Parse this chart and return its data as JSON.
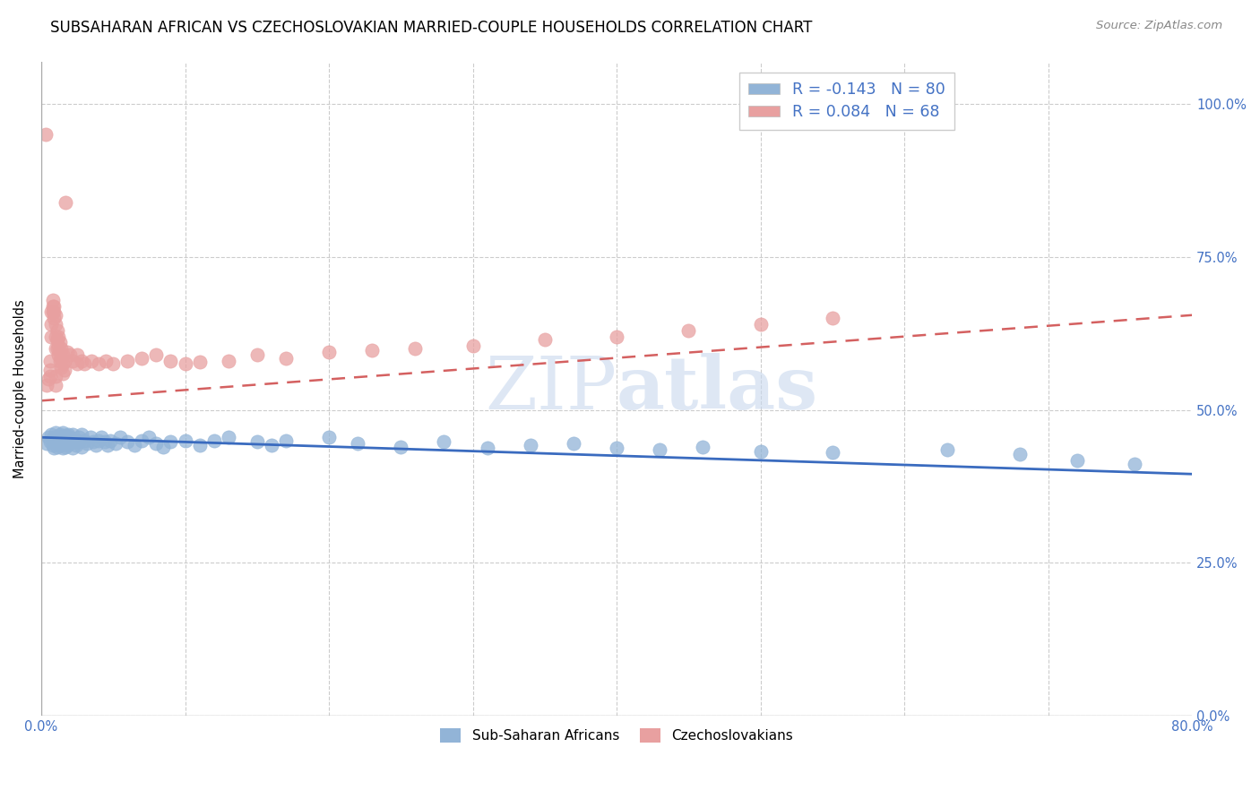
{
  "title": "SUBSAHARAN AFRICAN VS CZECHOSLOVAKIAN MARRIED-COUPLE HOUSEHOLDS CORRELATION CHART",
  "source": "Source: ZipAtlas.com",
  "ylabel": "Married-couple Households",
  "ytick_labels": [
    "0.0%",
    "25.0%",
    "50.0%",
    "75.0%",
    "100.0%"
  ],
  "ytick_vals": [
    0.0,
    0.25,
    0.5,
    0.75,
    1.0
  ],
  "xlim": [
    0.0,
    0.8
  ],
  "ylim": [
    0.0,
    1.07
  ],
  "xtick_positions": [
    0.0,
    0.8
  ],
  "xtick_labels": [
    "0.0%",
    "80.0%"
  ],
  "legend_blue_r": "-0.143",
  "legend_blue_n": "80",
  "legend_pink_r": "0.084",
  "legend_pink_n": "68",
  "legend_sub_label": "Sub-Saharan Africans",
  "legend_czech_label": "Czechoslovakians",
  "blue_color": "#92b4d7",
  "pink_color": "#e8a0a0",
  "trend_blue_color": "#3a6bbf",
  "trend_pink_color": "#d46060",
  "watermark_color": "#c8d8ee",
  "title_fontsize": 12,
  "source_fontsize": 9.5,
  "blue_trend_start_y": 0.455,
  "blue_trend_end_y": 0.395,
  "pink_trend_start_y": 0.515,
  "pink_trend_end_y": 0.655,
  "blue_scatter": [
    [
      0.004,
      0.445
    ],
    [
      0.005,
      0.455
    ],
    [
      0.006,
      0.448
    ],
    [
      0.007,
      0.46
    ],
    [
      0.008,
      0.442
    ],
    [
      0.008,
      0.452
    ],
    [
      0.009,
      0.455
    ],
    [
      0.009,
      0.438
    ],
    [
      0.01,
      0.45
    ],
    [
      0.01,
      0.462
    ],
    [
      0.011,
      0.448
    ],
    [
      0.011,
      0.44
    ],
    [
      0.012,
      0.455
    ],
    [
      0.012,
      0.445
    ],
    [
      0.013,
      0.46
    ],
    [
      0.013,
      0.442
    ],
    [
      0.014,
      0.455
    ],
    [
      0.014,
      0.448
    ],
    [
      0.015,
      0.462
    ],
    [
      0.015,
      0.438
    ],
    [
      0.016,
      0.45
    ],
    [
      0.016,
      0.445
    ],
    [
      0.017,
      0.458
    ],
    [
      0.017,
      0.44
    ],
    [
      0.018,
      0.455
    ],
    [
      0.018,
      0.442
    ],
    [
      0.019,
      0.448
    ],
    [
      0.019,
      0.46
    ],
    [
      0.02,
      0.455
    ],
    [
      0.02,
      0.445
    ],
    [
      0.022,
      0.46
    ],
    [
      0.022,
      0.438
    ],
    [
      0.024,
      0.45
    ],
    [
      0.024,
      0.442
    ],
    [
      0.026,
      0.455
    ],
    [
      0.026,
      0.448
    ],
    [
      0.028,
      0.46
    ],
    [
      0.028,
      0.44
    ],
    [
      0.03,
      0.45
    ],
    [
      0.032,
      0.445
    ],
    [
      0.034,
      0.455
    ],
    [
      0.036,
      0.448
    ],
    [
      0.038,
      0.442
    ],
    [
      0.04,
      0.45
    ],
    [
      0.042,
      0.455
    ],
    [
      0.044,
      0.448
    ],
    [
      0.046,
      0.442
    ],
    [
      0.048,
      0.45
    ],
    [
      0.052,
      0.445
    ],
    [
      0.055,
      0.455
    ],
    [
      0.06,
      0.448
    ],
    [
      0.065,
      0.442
    ],
    [
      0.07,
      0.45
    ],
    [
      0.075,
      0.455
    ],
    [
      0.08,
      0.445
    ],
    [
      0.085,
      0.44
    ],
    [
      0.09,
      0.448
    ],
    [
      0.1,
      0.45
    ],
    [
      0.11,
      0.442
    ],
    [
      0.12,
      0.45
    ],
    [
      0.13,
      0.455
    ],
    [
      0.15,
      0.448
    ],
    [
      0.16,
      0.442
    ],
    [
      0.17,
      0.45
    ],
    [
      0.2,
      0.455
    ],
    [
      0.22,
      0.445
    ],
    [
      0.25,
      0.44
    ],
    [
      0.28,
      0.448
    ],
    [
      0.31,
      0.438
    ],
    [
      0.34,
      0.442
    ],
    [
      0.37,
      0.445
    ],
    [
      0.4,
      0.438
    ],
    [
      0.43,
      0.435
    ],
    [
      0.46,
      0.44
    ],
    [
      0.5,
      0.432
    ],
    [
      0.55,
      0.43
    ],
    [
      0.63,
      0.435
    ],
    [
      0.68,
      0.428
    ],
    [
      0.72,
      0.418
    ],
    [
      0.76,
      0.412
    ]
  ],
  "pink_scatter": [
    [
      0.003,
      0.95
    ],
    [
      0.004,
      0.54
    ],
    [
      0.005,
      0.55
    ],
    [
      0.006,
      0.555
    ],
    [
      0.006,
      0.565
    ],
    [
      0.006,
      0.58
    ],
    [
      0.007,
      0.62
    ],
    [
      0.007,
      0.64
    ],
    [
      0.007,
      0.66
    ],
    [
      0.008,
      0.66
    ],
    [
      0.008,
      0.67
    ],
    [
      0.008,
      0.68
    ],
    [
      0.009,
      0.65
    ],
    [
      0.009,
      0.66
    ],
    [
      0.009,
      0.67
    ],
    [
      0.01,
      0.54
    ],
    [
      0.01,
      0.555
    ],
    [
      0.01,
      0.6
    ],
    [
      0.01,
      0.62
    ],
    [
      0.01,
      0.64
    ],
    [
      0.01,
      0.655
    ],
    [
      0.011,
      0.6
    ],
    [
      0.011,
      0.615
    ],
    [
      0.011,
      0.63
    ],
    [
      0.012,
      0.59
    ],
    [
      0.012,
      0.605
    ],
    [
      0.012,
      0.62
    ],
    [
      0.013,
      0.58
    ],
    [
      0.013,
      0.595
    ],
    [
      0.013,
      0.61
    ],
    [
      0.014,
      0.57
    ],
    [
      0.014,
      0.585
    ],
    [
      0.014,
      0.6
    ],
    [
      0.015,
      0.56
    ],
    [
      0.015,
      0.575
    ],
    [
      0.015,
      0.59
    ],
    [
      0.016,
      0.565
    ],
    [
      0.016,
      0.58
    ],
    [
      0.017,
      0.84
    ],
    [
      0.018,
      0.595
    ],
    [
      0.02,
      0.59
    ],
    [
      0.022,
      0.58
    ],
    [
      0.025,
      0.575
    ],
    [
      0.025,
      0.59
    ],
    [
      0.028,
      0.58
    ],
    [
      0.03,
      0.575
    ],
    [
      0.035,
      0.58
    ],
    [
      0.04,
      0.575
    ],
    [
      0.045,
      0.58
    ],
    [
      0.05,
      0.575
    ],
    [
      0.06,
      0.58
    ],
    [
      0.07,
      0.585
    ],
    [
      0.08,
      0.59
    ],
    [
      0.09,
      0.58
    ],
    [
      0.1,
      0.575
    ],
    [
      0.11,
      0.578
    ],
    [
      0.13,
      0.58
    ],
    [
      0.15,
      0.59
    ],
    [
      0.17,
      0.585
    ],
    [
      0.2,
      0.595
    ],
    [
      0.23,
      0.598
    ],
    [
      0.26,
      0.6
    ],
    [
      0.3,
      0.605
    ],
    [
      0.35,
      0.615
    ],
    [
      0.4,
      0.62
    ],
    [
      0.45,
      0.63
    ],
    [
      0.5,
      0.64
    ],
    [
      0.55,
      0.65
    ]
  ]
}
